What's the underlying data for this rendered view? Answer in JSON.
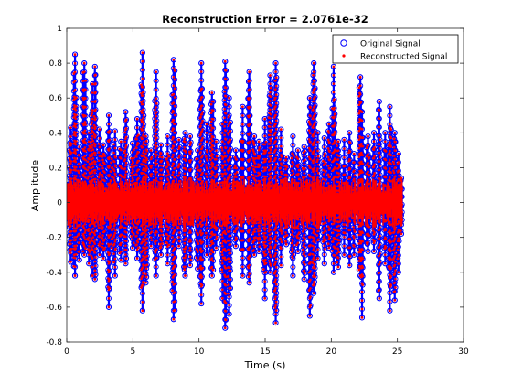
{
  "chart_data": {
    "type": "scatter",
    "title": "Reconstruction Error = 2.0761e-32",
    "xlabel": "Time (s)",
    "ylabel": "Amplitude",
    "xlim": [
      0,
      30
    ],
    "ylim": [
      -0.8,
      1
    ],
    "xticks": [
      "0",
      "5",
      "10",
      "15",
      "20",
      "25",
      "30"
    ],
    "xtick_values": [
      0,
      5,
      10,
      15,
      20,
      25,
      30
    ],
    "yticks": [
      "-0.8",
      "-0.6",
      "-0.4",
      "-0.2",
      "0",
      "0.2",
      "0.4",
      "0.6",
      "0.8",
      "1"
    ],
    "ytick_values": [
      -0.8,
      -0.6,
      -0.4,
      -0.2,
      0,
      0.2,
      0.4,
      0.6,
      0.8,
      1
    ],
    "grid": false,
    "legend_position": "top-right",
    "signal_end_time": 25.4,
    "series": [
      {
        "name": "Original Signal",
        "marker": "circle-open",
        "color": "#0000ff"
      },
      {
        "name": "Reconstructed Signal",
        "marker": "dot",
        "color": "#ff0000"
      }
    ],
    "bursts": [
      {
        "t": 0.3,
        "pos": 0.43,
        "neg": -0.34
      },
      {
        "t": 0.65,
        "pos": 0.85,
        "neg": -0.42
      },
      {
        "t": 0.95,
        "pos": 0.32,
        "neg": -0.33
      },
      {
        "t": 1.35,
        "pos": 0.8,
        "neg": -0.3
      },
      {
        "t": 1.7,
        "pos": 0.4,
        "neg": -0.35
      },
      {
        "t": 1.95,
        "pos": 0.68,
        "neg": -0.42
      },
      {
        "t": 2.15,
        "pos": 0.78,
        "neg": -0.44
      },
      {
        "t": 2.5,
        "pos": 0.42,
        "neg": -0.3
      },
      {
        "t": 2.8,
        "pos": 0.33,
        "neg": -0.32
      },
      {
        "t": 3.2,
        "pos": 0.5,
        "neg": -0.6
      },
      {
        "t": 3.4,
        "pos": 0.25,
        "neg": -0.26
      },
      {
        "t": 3.65,
        "pos": 0.41,
        "neg": -0.42
      },
      {
        "t": 4.1,
        "pos": 0.35,
        "neg": -0.33
      },
      {
        "t": 4.45,
        "pos": 0.52,
        "neg": -0.35
      },
      {
        "t": 5.0,
        "pos": 0.34,
        "neg": -0.26
      },
      {
        "t": 5.35,
        "pos": 0.48,
        "neg": -0.32
      },
      {
        "t": 5.75,
        "pos": 0.86,
        "neg": -0.62
      },
      {
        "t": 6.0,
        "pos": 0.38,
        "neg": -0.46
      },
      {
        "t": 6.4,
        "pos": 0.3,
        "neg": -0.25
      },
      {
        "t": 6.75,
        "pos": 0.75,
        "neg": -0.42
      },
      {
        "t": 7.15,
        "pos": 0.33,
        "neg": -0.3
      },
      {
        "t": 7.65,
        "pos": 0.38,
        "neg": -0.35
      },
      {
        "t": 8.1,
        "pos": 0.82,
        "neg": -0.67
      },
      {
        "t": 8.5,
        "pos": 0.36,
        "neg": -0.25
      },
      {
        "t": 8.95,
        "pos": 0.4,
        "neg": -0.42
      },
      {
        "t": 9.35,
        "pos": 0.38,
        "neg": -0.36
      },
      {
        "t": 9.9,
        "pos": 0.3,
        "neg": -0.38
      },
      {
        "t": 10.2,
        "pos": 0.8,
        "neg": -0.58
      },
      {
        "t": 10.6,
        "pos": 0.45,
        "neg": -0.3
      },
      {
        "t": 11.0,
        "pos": 0.63,
        "neg": -0.42
      },
      {
        "t": 11.3,
        "pos": 0.35,
        "neg": -0.26
      },
      {
        "t": 11.8,
        "pos": 0.45,
        "neg": -0.55
      },
      {
        "t": 12.0,
        "pos": 0.81,
        "neg": -0.72
      },
      {
        "t": 12.3,
        "pos": 0.6,
        "neg": -0.64
      },
      {
        "t": 12.8,
        "pos": 0.3,
        "neg": -0.25
      },
      {
        "t": 13.3,
        "pos": 0.55,
        "neg": -0.42
      },
      {
        "t": 13.8,
        "pos": 0.75,
        "neg": -0.46
      },
      {
        "t": 14.2,
        "pos": 0.38,
        "neg": -0.3
      },
      {
        "t": 14.55,
        "pos": 0.35,
        "neg": -0.28
      },
      {
        "t": 15.0,
        "pos": 0.48,
        "neg": -0.55
      },
      {
        "t": 15.4,
        "pos": 0.73,
        "neg": -0.4
      },
      {
        "t": 15.8,
        "pos": 0.8,
        "neg": -0.69
      },
      {
        "t": 16.2,
        "pos": 0.42,
        "neg": -0.36
      },
      {
        "t": 16.6,
        "pos": 0.26,
        "neg": -0.24
      },
      {
        "t": 17.1,
        "pos": 0.38,
        "neg": -0.42
      },
      {
        "t": 17.5,
        "pos": 0.3,
        "neg": -0.28
      },
      {
        "t": 17.95,
        "pos": 0.32,
        "neg": -0.44
      },
      {
        "t": 18.4,
        "pos": 0.6,
        "neg": -0.65
      },
      {
        "t": 18.7,
        "pos": 0.8,
        "neg": -0.52
      },
      {
        "t": 19.0,
        "pos": 0.4,
        "neg": -0.32
      },
      {
        "t": 19.5,
        "pos": 0.37,
        "neg": -0.35
      },
      {
        "t": 19.85,
        "pos": 0.45,
        "neg": -0.26
      },
      {
        "t": 20.2,
        "pos": 0.78,
        "neg": -0.4
      },
      {
        "t": 20.55,
        "pos": 0.35,
        "neg": -0.37
      },
      {
        "t": 21.0,
        "pos": 0.36,
        "neg": -0.3
      },
      {
        "t": 21.4,
        "pos": 0.4,
        "neg": -0.36
      },
      {
        "t": 21.75,
        "pos": 0.28,
        "neg": -0.3
      },
      {
        "t": 22.2,
        "pos": 0.72,
        "neg": -0.42
      },
      {
        "t": 22.35,
        "pos": 0.52,
        "neg": -0.66
      },
      {
        "t": 22.8,
        "pos": 0.38,
        "neg": -0.28
      },
      {
        "t": 23.25,
        "pos": 0.4,
        "neg": -0.28
      },
      {
        "t": 23.65,
        "pos": 0.58,
        "neg": -0.55
      },
      {
        "t": 24.1,
        "pos": 0.4,
        "neg": -0.35
      },
      {
        "t": 24.45,
        "pos": 0.55,
        "neg": -0.62
      },
      {
        "t": 24.8,
        "pos": 0.4,
        "neg": -0.56
      },
      {
        "t": 25.1,
        "pos": 0.28,
        "neg": -0.4
      },
      {
        "t": 25.3,
        "pos": 0.14,
        "neg": -0.18
      }
    ]
  }
}
